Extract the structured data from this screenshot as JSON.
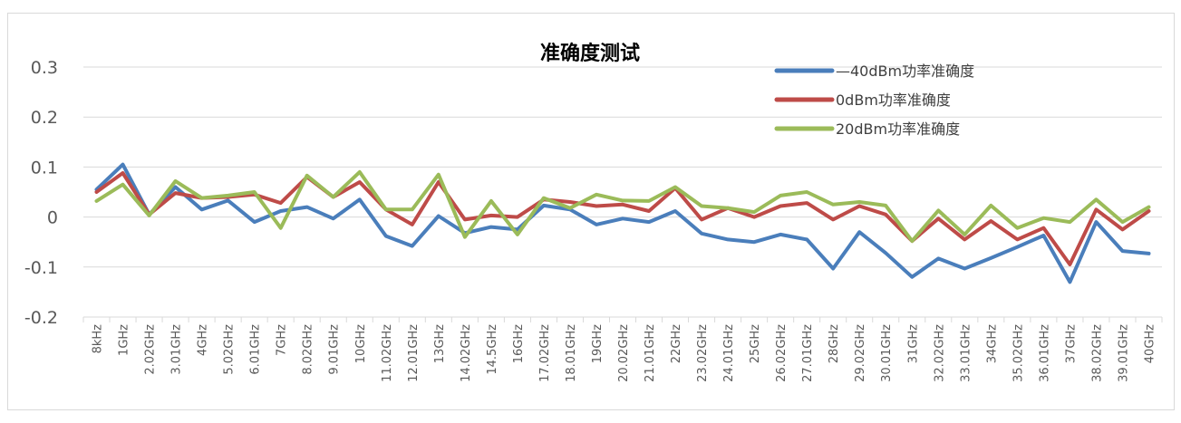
{
  "chart_data": {
    "type": "line",
    "title": "准确度测试",
    "xlabel": "",
    "ylabel": "",
    "ylim": [
      -0.2,
      0.3
    ],
    "yticks": [
      "0.3",
      "0.2",
      "0.1",
      "0",
      "-0.1",
      "-0.2"
    ],
    "grid": true,
    "legend_position": "top-right",
    "categories": [
      "8kHz",
      "1GHz",
      "2.02GHz",
      "3.01GHz",
      "4GHz",
      "5.02GHz",
      "6.01GHz",
      "7GHz",
      "8.02GHz",
      "9.01GHz",
      "10GHz",
      "11.02GHz",
      "12.01GHz",
      "13GHz",
      "14.02GHz",
      "14.5GHz",
      "16GHz",
      "17.02GHz",
      "18.01GHz",
      "19GHz",
      "20.02GHz",
      "21.01GHz",
      "22GHz",
      "23.02GHz",
      "24.01GHz",
      "25GHz",
      "26.02GHz",
      "27.01GHz",
      "28GHz",
      "29.02GHz",
      "30.01GHz",
      "31GHz",
      "32.02GHz",
      "33.01GHz",
      "34GHz",
      "35.02GHz",
      "36.01GHz",
      "37GHz",
      "38.02GHz",
      "39.01GHz",
      "40GHz"
    ],
    "series": [
      {
        "name": "—40dBm功率准确度",
        "color": "#4a7ebb",
        "values": [
          0.055,
          0.105,
          0.005,
          0.06,
          0.015,
          0.033,
          -0.01,
          0.012,
          0.02,
          -0.003,
          0.035,
          -0.038,
          -0.058,
          0.002,
          -0.032,
          -0.02,
          -0.025,
          0.023,
          0.015,
          -0.015,
          -0.003,
          -0.01,
          0.012,
          -0.033,
          -0.045,
          -0.05,
          -0.035,
          -0.045,
          -0.103,
          -0.03,
          -0.072,
          -0.12,
          -0.083,
          -0.103,
          -0.082,
          -0.06,
          -0.037,
          -0.13,
          -0.01,
          -0.068,
          -0.073
        ]
      },
      {
        "name": "0dBm功率准确度",
        "color": "#be4b48",
        "values": [
          0.05,
          0.088,
          0.005,
          0.048,
          0.038,
          0.04,
          0.045,
          0.028,
          0.08,
          0.04,
          0.07,
          0.015,
          -0.015,
          0.07,
          -0.005,
          0.003,
          0.0,
          0.035,
          0.03,
          0.022,
          0.025,
          0.012,
          0.058,
          -0.005,
          0.018,
          0.0,
          0.022,
          0.028,
          -0.005,
          0.022,
          0.005,
          -0.048,
          -0.003,
          -0.045,
          -0.008,
          -0.045,
          -0.022,
          -0.095,
          0.015,
          -0.025,
          0.012
        ]
      },
      {
        "name": "20dBm功率准确度",
        "color": "#9bbb59",
        "values": [
          0.032,
          0.065,
          0.003,
          0.072,
          0.038,
          0.043,
          0.05,
          -0.022,
          0.083,
          0.04,
          0.09,
          0.015,
          0.015,
          0.085,
          -0.04,
          0.032,
          -0.035,
          0.038,
          0.018,
          0.045,
          0.033,
          0.032,
          0.06,
          0.022,
          0.018,
          0.01,
          0.043,
          0.05,
          0.025,
          0.03,
          0.023,
          -0.048,
          0.013,
          -0.035,
          0.023,
          -0.022,
          -0.002,
          -0.01,
          0.035,
          -0.01,
          0.02
        ]
      }
    ]
  }
}
